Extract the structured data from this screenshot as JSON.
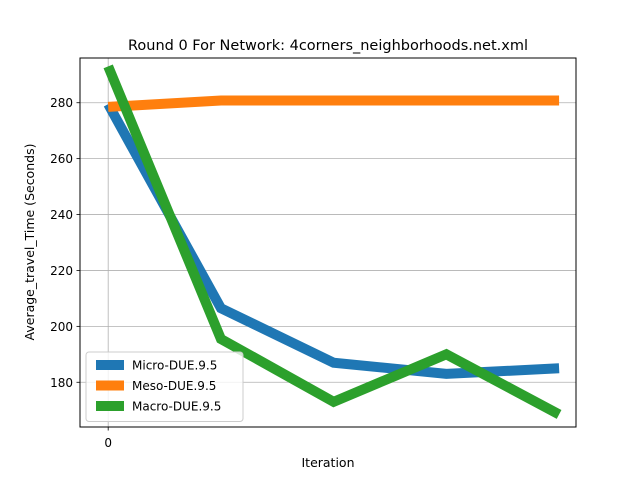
{
  "chart_data": {
    "type": "line",
    "title": "Round 0 For Network: 4corners_neighborhoods.net.xml",
    "xlabel": "Iteration",
    "ylabel": "Average_travel_Time (Seconds)",
    "x": [
      0,
      1,
      2,
      3,
      4
    ],
    "xticks": [
      0
    ],
    "xtick_labels": [
      "0"
    ],
    "xlim": [
      -0.25,
      4.15
    ],
    "ylim": [
      164,
      296
    ],
    "yticks": [
      180,
      200,
      220,
      240,
      260,
      280
    ],
    "grid": true,
    "legend_position": "lower-left",
    "series": [
      {
        "name": "Micro-DUE.9.5",
        "color": "#1f77b4",
        "values": [
          279.5,
          206.5,
          187,
          183,
          185
        ]
      },
      {
        "name": "Meso-DUE.9.5",
        "color": "#ff7f0e",
        "values": [
          278.5,
          280.8,
          280.8,
          280.8,
          280.8
        ]
      },
      {
        "name": "Macro-DUE.9.5",
        "color": "#2ca02c",
        "values": [
          293,
          195.5,
          173,
          190,
          168.5
        ]
      }
    ]
  }
}
